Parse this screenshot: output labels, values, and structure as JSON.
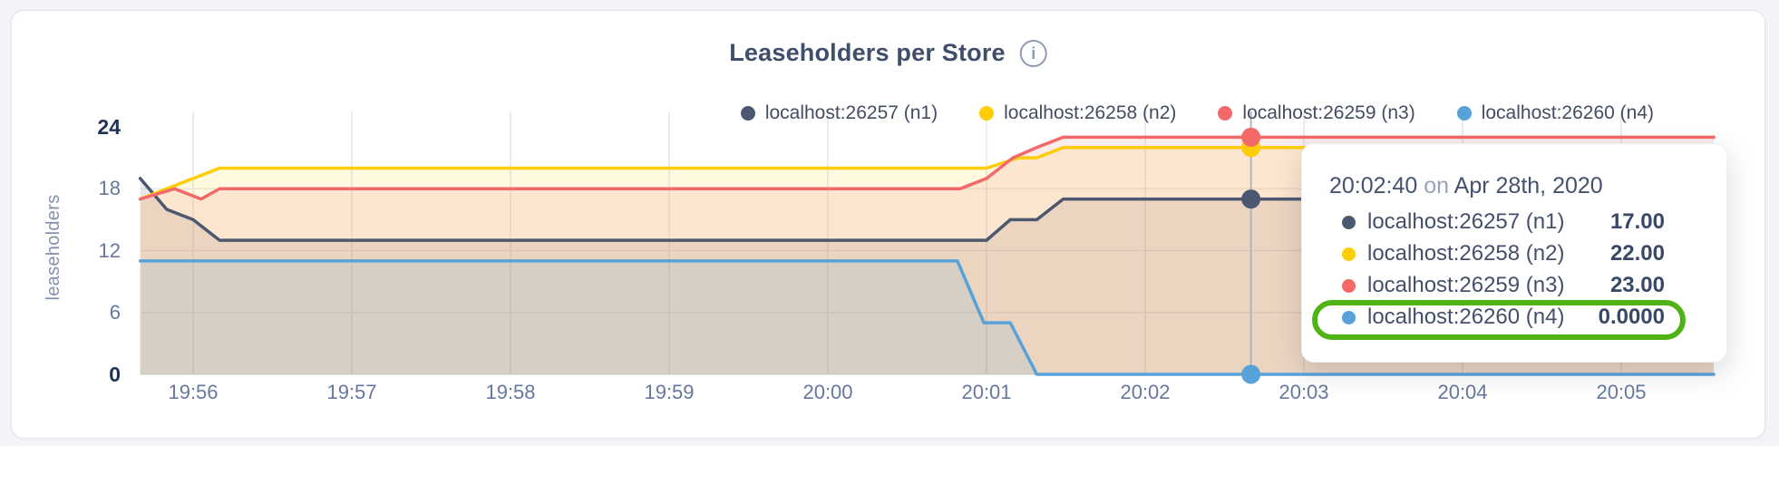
{
  "header": {
    "title": "Leaseholders per Store",
    "info_icon": "info-icon"
  },
  "legend": [
    {
      "label": "localhost:26257 (n1)",
      "color": "#4c5870"
    },
    {
      "label": "localhost:26258 (n2)",
      "color": "#ffcd05"
    },
    {
      "label": "localhost:26259 (n3)",
      "color": "#f3696a"
    },
    {
      "label": "localhost:26260 (n4)",
      "color": "#58a2da"
    }
  ],
  "chart_data": {
    "type": "area",
    "title": "Leaseholders per Store",
    "ylabel": "leaseholders",
    "ylim": [
      0,
      24
    ],
    "grid": true,
    "legend_position": "top-right",
    "y_ticks": [
      {
        "v": 0,
        "label": "0",
        "bold": true
      },
      {
        "v": 6,
        "label": "6",
        "bold": false
      },
      {
        "v": 12,
        "label": "12",
        "bold": false
      },
      {
        "v": 18,
        "label": "18",
        "bold": false
      },
      {
        "v": 24,
        "label": "24",
        "bold": true
      }
    ],
    "x_note": "t is seconds after 19:56:00",
    "x_range_seconds": [
      -20,
      575
    ],
    "x_ticks": [
      {
        "t": 0,
        "label": "19:56"
      },
      {
        "t": 60,
        "label": "19:57"
      },
      {
        "t": 120,
        "label": "19:58"
      },
      {
        "t": 180,
        "label": "19:59"
      },
      {
        "t": 240,
        "label": "20:00"
      },
      {
        "t": 300,
        "label": "20:01"
      },
      {
        "t": 360,
        "label": "20:02"
      },
      {
        "t": 420,
        "label": "20:03"
      },
      {
        "t": 480,
        "label": "20:04"
      },
      {
        "t": 540,
        "label": "20:05"
      }
    ],
    "series": [
      {
        "name": "localhost:26257 (n1)",
        "color": "#4c5870",
        "points": [
          [
            -20,
            19
          ],
          [
            -10,
            16
          ],
          [
            0,
            15
          ],
          [
            10,
            13
          ],
          [
            300,
            13
          ],
          [
            309,
            15
          ],
          [
            319,
            15
          ],
          [
            329,
            17
          ],
          [
            575,
            17
          ]
        ]
      },
      {
        "name": "localhost:26258 (n2)",
        "color": "#ffcd05",
        "points": [
          [
            -20,
            17
          ],
          [
            10,
            20
          ],
          [
            300,
            20
          ],
          [
            312,
            21
          ],
          [
            319,
            21
          ],
          [
            329,
            22
          ],
          [
            575,
            22
          ]
        ]
      },
      {
        "name": "localhost:26259 (n3)",
        "color": "#f3696a",
        "points": [
          [
            -20,
            17
          ],
          [
            -7,
            18
          ],
          [
            3,
            17
          ],
          [
            10,
            18
          ],
          [
            290,
            18
          ],
          [
            300,
            19
          ],
          [
            310,
            21
          ],
          [
            319,
            22
          ],
          [
            329,
            23
          ],
          [
            575,
            23
          ]
        ]
      },
      {
        "name": "localhost:26260 (n4)",
        "color": "#58a2da",
        "points": [
          [
            -20,
            11
          ],
          [
            289,
            11
          ],
          [
            299,
            5
          ],
          [
            309,
            5
          ],
          [
            319,
            0
          ],
          [
            575,
            0
          ]
        ]
      }
    ],
    "hover": {
      "t": 400,
      "time": "20:02:40",
      "values": [
        17,
        22,
        23,
        0
      ]
    }
  },
  "tooltip": {
    "time": "20:02:40",
    "conj": "on",
    "date": "Apr 28th, 2020",
    "rows": [
      {
        "label": "localhost:26257 (n1)",
        "value": "17.00",
        "color": "#4c5870",
        "highlighted": false
      },
      {
        "label": "localhost:26258 (n2)",
        "value": "22.00",
        "color": "#ffcd05",
        "highlighted": false
      },
      {
        "label": "localhost:26259 (n3)",
        "value": "23.00",
        "color": "#f3696a",
        "highlighted": false
      },
      {
        "label": "localhost:26260 (n4)",
        "value": "0.0000",
        "color": "#58a2da",
        "highlighted": true
      }
    ],
    "highlight_color": "#50b314"
  }
}
